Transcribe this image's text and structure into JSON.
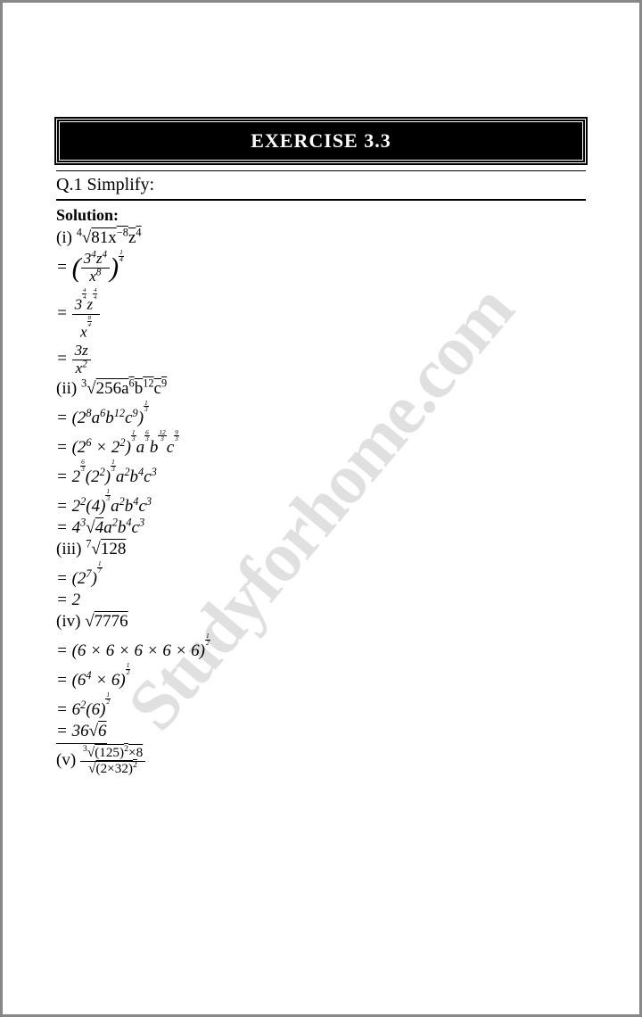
{
  "header": {
    "title": "EXERCISE 3.3"
  },
  "question": {
    "label": "Q.1 Simplify:"
  },
  "solution_label": "Solution:",
  "watermark": "Studyforhome.com",
  "lines": {
    "p1": "(i) ",
    "p1a": "81x",
    "p1b": "z",
    "p2a": "3",
    "p2b": "z",
    "p2c": "x",
    "p3a": "3",
    "p3b": "z",
    "p3c": "x",
    "p4a": "3z",
    "p4b": "x",
    "p5": "(ii) ",
    "p5a": "256a",
    "p5b": "b",
    "p5c": "c",
    "p6": "= (2",
    "p6a": "a",
    "p6b": "b",
    "p6c": "c",
    "p6d": ")",
    "p7": "= (2",
    "p7a": " × 2",
    "p7b": ")",
    "p7c": "a",
    "p7d": "b",
    "p7e": "c",
    "p8": "= 2",
    "p8a": "(2",
    "p8b": ")",
    "p8c": "a",
    "p8d": "b",
    "p8e": "c",
    "p9": "= 2",
    "p9a": "(4)",
    "p9b": "a",
    "p9c": "b",
    "p9d": "c",
    "p10": "= 4",
    "p10a": "4",
    "p10b": "a",
    "p10c": "b",
    "p10d": "c",
    "p11": "(iii) ",
    "p11a": "128",
    "p12": "= (2",
    "p12a": ")",
    "p13": "= 2",
    "p14": "(iv) ",
    "p14a": "7776",
    "p15": "= (6 × 6 × 6 × 6 × 6)",
    "p16": "= (6",
    "p16a": " × 6)",
    "p17": "= 6",
    "p17a": "(6)",
    "p18": "= 36",
    "p18a": "6",
    "p19": "(v) ",
    "p19a": "(125)",
    "p19b": "×8",
    "p19c": "(2×32)"
  },
  "colors": {
    "text": "#000000",
    "bg": "#ffffff",
    "border": "#888888",
    "watermark": "#e0e0e0"
  }
}
